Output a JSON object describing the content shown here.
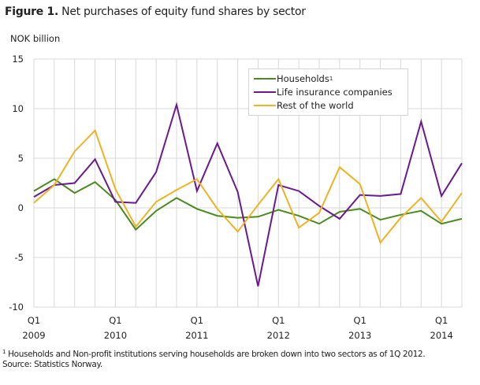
{
  "figure": {
    "label": "Figure 1.",
    "title": "Net purchases of equity fund shares by sector",
    "unit": "NOK billion"
  },
  "legend": [
    {
      "label": "Households",
      "sup": "1",
      "color": "#4b8a1e"
    },
    {
      "label": "Life insurance companies",
      "sup": "",
      "color": "#6b1a8e"
    },
    {
      "label": "Rest of the world",
      "sup": "",
      "color": "#efb225"
    }
  ],
  "footnote": {
    "marker": "1",
    "text": " Households and Non-profit institutions serving households are broken down into two sectors as of 1Q 2012.",
    "source": "Source: Statistics Norway."
  },
  "colors": {
    "grid": "#d9d9d9",
    "axis_text": "#222222"
  },
  "chart_data": {
    "type": "line",
    "title": "Figure 1. Net purchases of equity fund shares by sector",
    "xlabel": "",
    "ylabel": "NOK billion",
    "ylim": [
      -10,
      15
    ],
    "yticks": [
      15,
      10,
      5,
      0,
      -5,
      -10
    ],
    "grid": true,
    "legend_position": "top-right inside",
    "x": [
      "2009Q1",
      "2009Q2",
      "2009Q3",
      "2009Q4",
      "2010Q1",
      "2010Q2",
      "2010Q3",
      "2010Q4",
      "2011Q1",
      "2011Q2",
      "2011Q3",
      "2011Q4",
      "2012Q1",
      "2012Q2",
      "2012Q3",
      "2012Q4",
      "2013Q1",
      "2013Q2",
      "2013Q3",
      "2013Q4",
      "2014Q1",
      "2014Q2"
    ],
    "xtick_labels": [
      {
        "index": 0,
        "q": "Q1",
        "year": "2009"
      },
      {
        "index": 4,
        "q": "Q1",
        "year": "2010"
      },
      {
        "index": 8,
        "q": "Q1",
        "year": "2011"
      },
      {
        "index": 12,
        "q": "Q1",
        "year": "2012"
      },
      {
        "index": 16,
        "q": "Q1",
        "year": "2013"
      },
      {
        "index": 20,
        "q": "Q1",
        "year": "2014"
      }
    ],
    "series": [
      {
        "name": "Households",
        "color": "#4b8a1e",
        "values": [
          1.7,
          2.9,
          1.5,
          2.6,
          0.8,
          -2.2,
          -0.3,
          1.0,
          -0.1,
          -0.8,
          -1.0,
          -0.9,
          -0.2,
          -0.8,
          -1.6,
          -0.4,
          -0.1,
          -1.2,
          -0.7,
          -0.3,
          -1.6,
          -1.1
        ]
      },
      {
        "name": "Life insurance companies",
        "color": "#6b1a8e",
        "values": [
          1.1,
          2.3,
          2.5,
          4.9,
          0.6,
          0.5,
          3.6,
          10.4,
          1.7,
          6.5,
          1.6,
          -7.9,
          2.3,
          1.7,
          0.2,
          -1.1,
          1.3,
          1.2,
          1.4,
          8.7,
          1.2,
          4.5
        ]
      },
      {
        "name": "Rest of the world",
        "color": "#efb225",
        "values": [
          0.5,
          2.3,
          5.7,
          7.8,
          1.9,
          -1.9,
          0.6,
          1.8,
          2.9,
          -0.1,
          -2.4,
          0.3,
          2.9,
          -2.0,
          -0.5,
          4.1,
          2.4,
          -3.5,
          -1.0,
          1.0,
          -1.4,
          1.5
        ]
      }
    ]
  }
}
